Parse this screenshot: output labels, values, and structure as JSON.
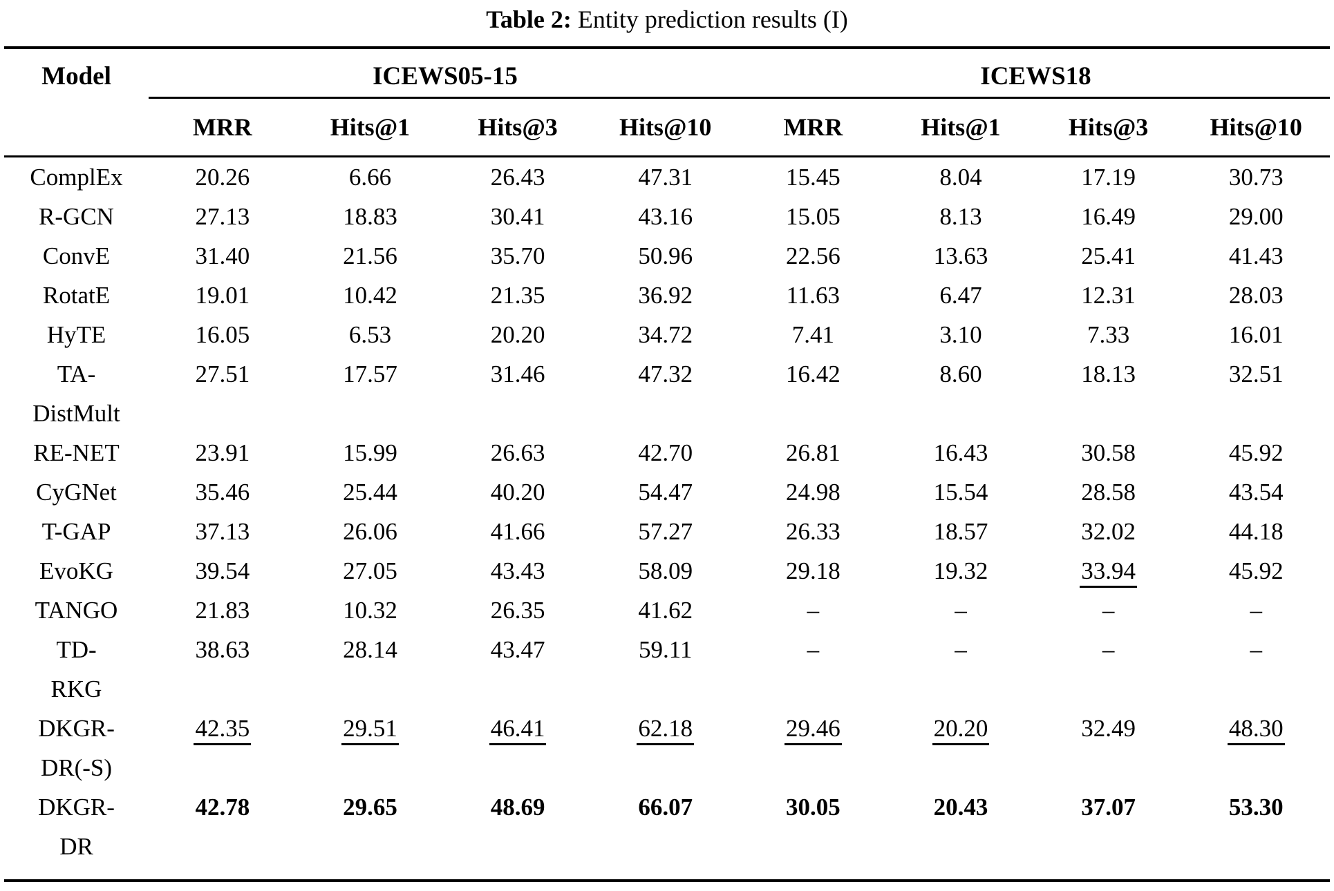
{
  "caption": {
    "label": "Table 2:",
    "text": " Entity prediction results (I)"
  },
  "table": {
    "model_header": "Model",
    "groups": [
      {
        "label": "ICEWS05-15",
        "metrics": [
          "MRR",
          "Hits@1",
          "Hits@3",
          "Hits@10"
        ]
      },
      {
        "label": "ICEWS18",
        "metrics": [
          "MRR",
          "Hits@1",
          "Hits@3",
          "Hits@10"
        ]
      }
    ],
    "rows": [
      {
        "model_lines": [
          "ComplEx"
        ],
        "values": [
          "20.26",
          "6.66",
          "26.43",
          "47.31",
          "15.45",
          "8.04",
          "17.19",
          "30.73"
        ]
      },
      {
        "model_lines": [
          "R-GCN"
        ],
        "values": [
          "27.13",
          "18.83",
          "30.41",
          "43.16",
          "15.05",
          "8.13",
          "16.49",
          "29.00"
        ]
      },
      {
        "model_lines": [
          "ConvE"
        ],
        "values": [
          "31.40",
          "21.56",
          "35.70",
          "50.96",
          "22.56",
          "13.63",
          "25.41",
          "41.43"
        ]
      },
      {
        "model_lines": [
          "RotatE"
        ],
        "values": [
          "19.01",
          "10.42",
          "21.35",
          "36.92",
          "11.63",
          "6.47",
          "12.31",
          "28.03"
        ]
      },
      {
        "model_lines": [
          "HyTE"
        ],
        "values": [
          "16.05",
          "6.53",
          "20.20",
          "34.72",
          "7.41",
          "3.10",
          "7.33",
          "16.01"
        ]
      },
      {
        "model_lines": [
          "TA-",
          "DistMult"
        ],
        "values": [
          "27.51",
          "17.57",
          "31.46",
          "47.32",
          "16.42",
          "8.60",
          "18.13",
          "32.51"
        ]
      },
      {
        "model_lines": [
          "RE-NET"
        ],
        "values": [
          "23.91",
          "15.99",
          "26.63",
          "42.70",
          "26.81",
          "16.43",
          "30.58",
          "45.92"
        ]
      },
      {
        "model_lines": [
          "CyGNet"
        ],
        "values": [
          "35.46",
          "25.44",
          "40.20",
          "54.47",
          "24.98",
          "15.54",
          "28.58",
          "43.54"
        ]
      },
      {
        "model_lines": [
          "T-GAP"
        ],
        "values": [
          "37.13",
          "26.06",
          "41.66",
          "57.27",
          "26.33",
          "18.57",
          "32.02",
          "44.18"
        ]
      },
      {
        "model_lines": [
          "EvoKG"
        ],
        "values": [
          "39.54",
          "27.05",
          "43.43",
          "58.09",
          "29.18",
          "19.32",
          "33.94",
          "45.92"
        ],
        "underlined_indices": [
          6
        ]
      },
      {
        "model_lines": [
          "TANGO"
        ],
        "values": [
          "21.83",
          "10.32",
          "26.35",
          "41.62",
          "–",
          "–",
          "–",
          "–"
        ]
      },
      {
        "model_lines": [
          "TD-",
          "RKG"
        ],
        "values": [
          "38.63",
          "28.14",
          "43.47",
          "59.11",
          "–",
          "–",
          "–",
          "–"
        ]
      },
      {
        "model_lines": [
          "DKGR-",
          "DR(-S)"
        ],
        "values": [
          "42.35",
          "29.51",
          "46.41",
          "62.18",
          "29.46",
          "20.20",
          "32.49",
          "48.30"
        ],
        "underlined_indices": [
          0,
          1,
          2,
          3,
          4,
          5,
          7
        ]
      },
      {
        "model_lines": [
          "DKGR-",
          "DR"
        ],
        "values": [
          "42.78",
          "29.65",
          "48.69",
          "66.07",
          "30.05",
          "20.43",
          "37.07",
          "53.30"
        ],
        "bold": true
      }
    ]
  }
}
